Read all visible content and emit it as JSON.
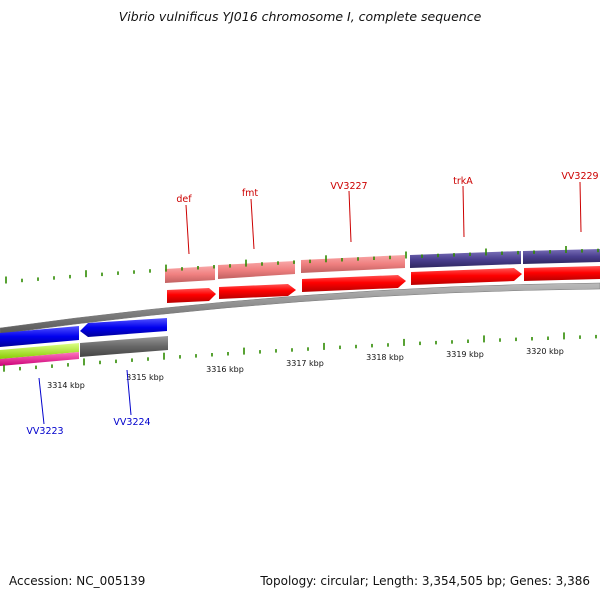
{
  "title": "Vibrio vulnificus YJ016 chromosome I, complete sequence",
  "footer": {
    "accession": "Accession: NC_005139",
    "summary": "Topology: circular; Length: 3,354,505 bp; Genes: 3,386"
  },
  "colors": {
    "forward_label": "#cc0000",
    "reverse_label": "#0000cc",
    "tick": "#2e8b00",
    "backbone": "#888888",
    "cds_forward": "#ff0000",
    "gene_pink": "#f08080",
    "gene_navy": "#4a3f8f",
    "cds_reverse": "#0000ee",
    "lime": "#aaee22",
    "magenta": "#ff1493",
    "grey_feature": "#666666"
  },
  "position_ticks": [
    {
      "label": "3314 kbp"
    },
    {
      "label": "3315 kbp"
    },
    {
      "label": "3316 kbp"
    },
    {
      "label": "3317 kbp"
    },
    {
      "label": "3318 kbp"
    },
    {
      "label": "3319 kbp"
    },
    {
      "label": "3320 kbp"
    }
  ],
  "forward_genes": [
    {
      "name": "def"
    },
    {
      "name": "fmt"
    },
    {
      "name": "VV3227"
    },
    {
      "name": "trkA"
    },
    {
      "name": "VV3229"
    }
  ],
  "reverse_genes": [
    {
      "name": "VV3223"
    },
    {
      "name": "VV3224"
    }
  ]
}
